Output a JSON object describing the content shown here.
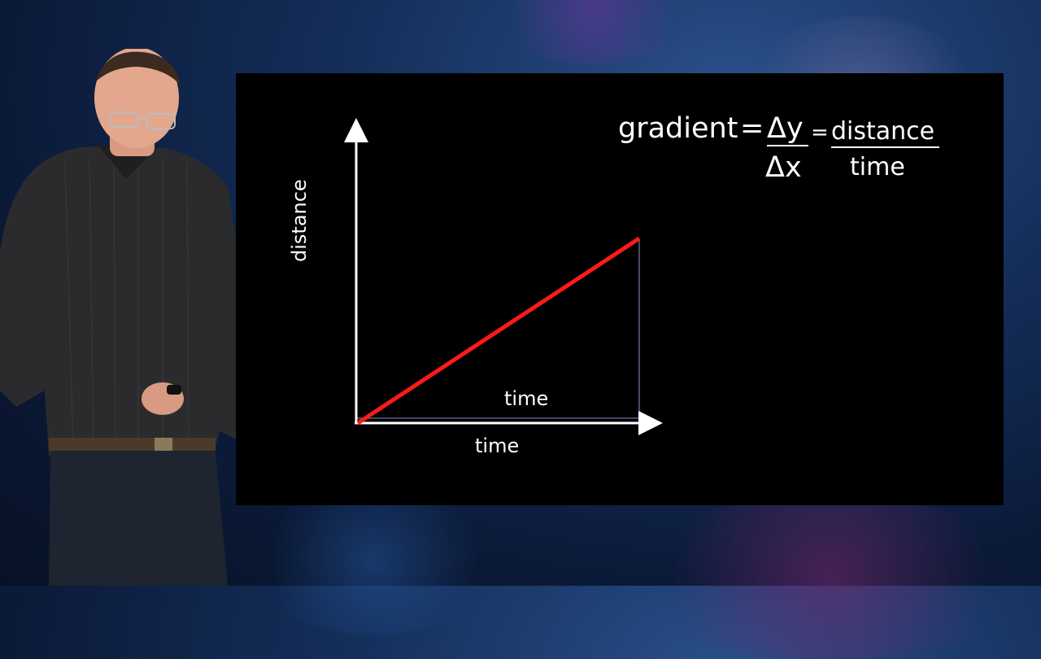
{
  "formula": {
    "lhs": "gradient",
    "equals": "=",
    "numerator_symbol": "Δy",
    "denominator_symbol": "Δx",
    "equals2": "=",
    "numerator_word": "distance",
    "denominator_word": "time"
  },
  "graph": {
    "y_axis_label": "distance",
    "x_axis_label": "time",
    "triangle_base_label": "time",
    "line_color": "#ff1a1a",
    "axis_color": "#ffffff",
    "triangle_color": "#5a5f8a"
  }
}
